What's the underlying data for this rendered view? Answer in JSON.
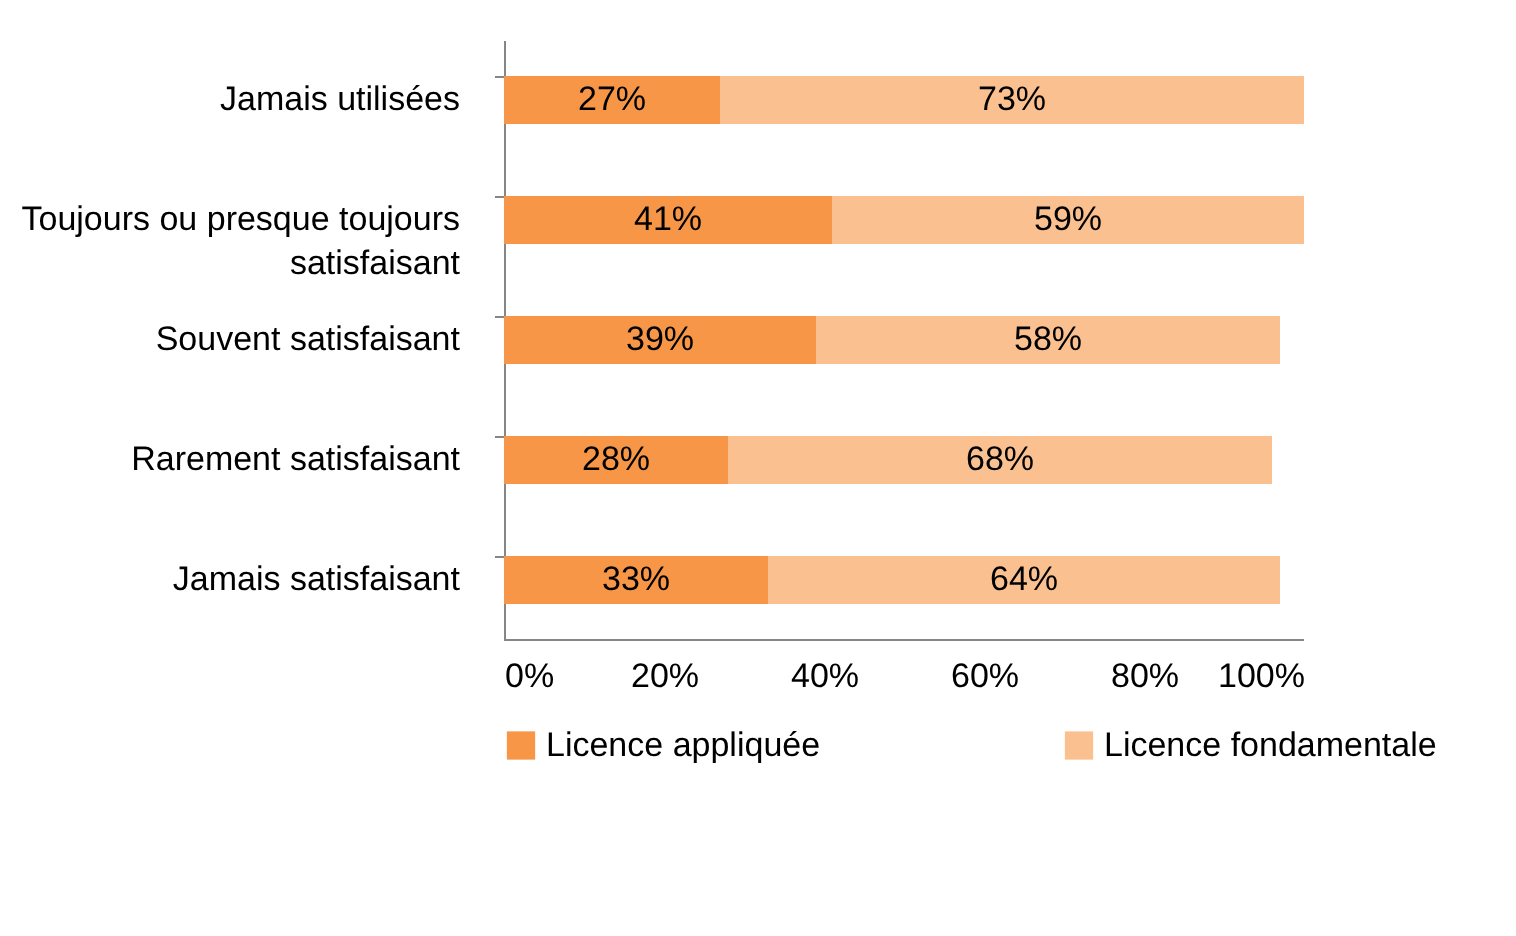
{
  "chart_data": {
    "type": "bar",
    "orientation": "horizontal",
    "stacked": true,
    "categories": [
      "Jamais utilisées",
      "Toujours ou presque toujours satisfaisant",
      "Souvent satisfaisant",
      "Rarement satisfaisant",
      "Jamais satisfaisant"
    ],
    "series": [
      {
        "name": "Licence appliquée",
        "color": "#f79646",
        "values": [
          27,
          41,
          39,
          28,
          33
        ],
        "value_labels": [
          "27%",
          "41%",
          "39%",
          "28%",
          "33%"
        ]
      },
      {
        "name": "Licence fondamentale",
        "color": "#fac090",
        "values": [
          73,
          59,
          58,
          68,
          64
        ],
        "value_labels": [
          "73%",
          "59%",
          "58%",
          "68%",
          "64%"
        ]
      }
    ],
    "xlim": [
      0,
      100
    ],
    "xticks": [
      {
        "value": 0,
        "label": "0%"
      },
      {
        "value": 20,
        "label": "20%"
      },
      {
        "value": 40,
        "label": "40%"
      },
      {
        "value": 60,
        "label": "60%"
      },
      {
        "value": 80,
        "label": "80%"
      },
      {
        "value": 100,
        "label": "100%"
      }
    ],
    "grid": false,
    "legend": "bottom"
  }
}
